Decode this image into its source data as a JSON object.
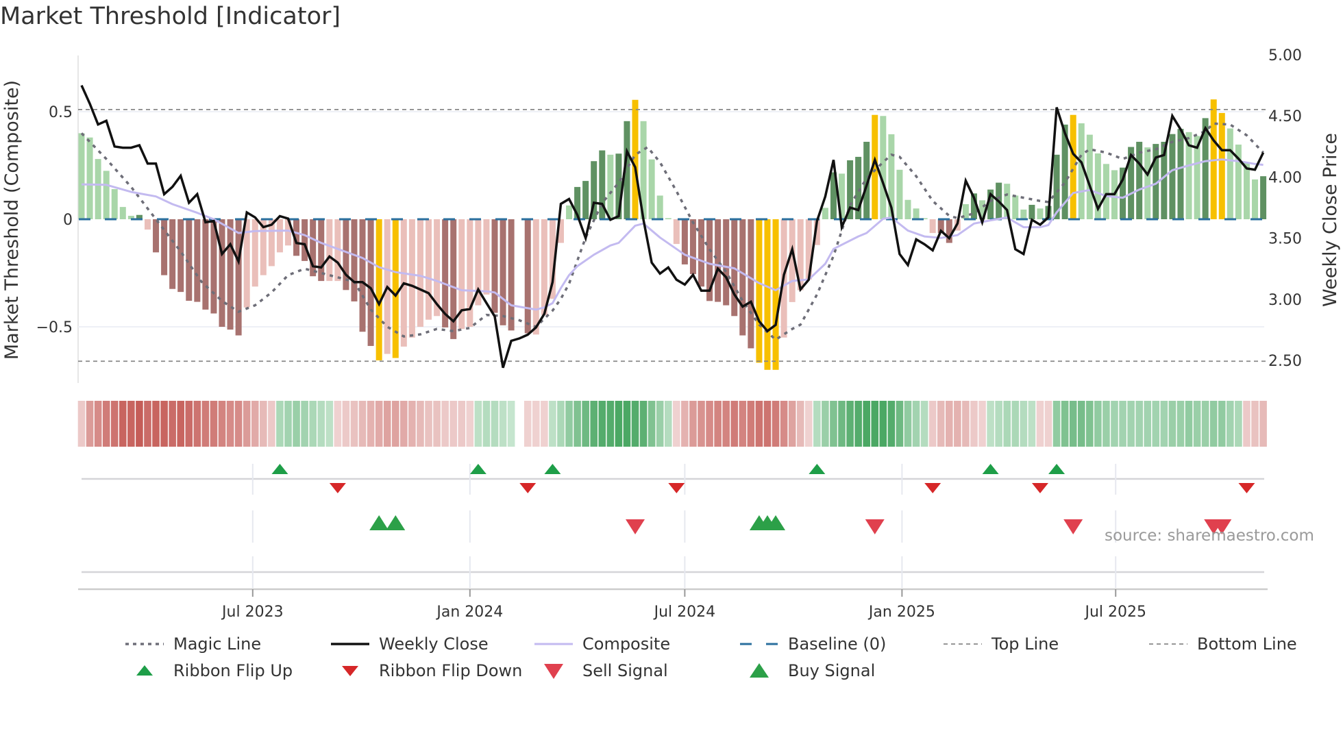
{
  "title": "Market Threshold [Indicator]",
  "source": "source: sharemaestro.com",
  "colors": {
    "light_green": "#a9d6a9",
    "dark_green": "#5f9162",
    "light_pink": "#eabfba",
    "dark_red": "#a8726f",
    "signal_yellow": "#f7c000",
    "close": "#111111",
    "magic": "#6e6e78",
    "composite": "#c3baf0",
    "baseline": "#2a6f9e",
    "threshold": "#888888",
    "flip_up": "#1e9e48",
    "flip_down": "#d62728",
    "buy": "#2ca048",
    "sell": "#e0404e",
    "ribbon_red": "#c25550",
    "ribbon_green": "#3a9f55"
  },
  "legend": [
    {
      "label": "Magic Line",
      "key": "magic"
    },
    {
      "label": "Weekly Close",
      "key": "close"
    },
    {
      "label": "Composite",
      "key": "composite"
    },
    {
      "label": "Baseline (0)",
      "key": "baseline"
    },
    {
      "label": "Top Line",
      "key": "top"
    },
    {
      "label": "Bottom Line",
      "key": "bottom"
    },
    {
      "label": "Ribbon Flip Up",
      "key": "flip_up"
    },
    {
      "label": "Ribbon Flip Down",
      "key": "flip_down"
    },
    {
      "label": "Sell Signal",
      "key": "sell"
    },
    {
      "label": "Buy Signal",
      "key": "buy"
    }
  ],
  "chart_data": {
    "type": "bar",
    "title": "Market Threshold [Indicator]",
    "ylabel": "Market Threshold (Composite)",
    "y2label": "Weekly Close Price",
    "x_start": "2023-02-06",
    "x_step_days": 7,
    "x_ticks": [
      {
        "label": "Jul 2023",
        "date": "2023-07-01"
      },
      {
        "label": "Jan 2024",
        "date": "2024-01-01"
      },
      {
        "label": "Jul 2024",
        "date": "2024-07-01"
      },
      {
        "label": "Jan 2025",
        "date": "2025-01-01"
      },
      {
        "label": "Jul 2025",
        "date": "2025-07-01"
      }
    ],
    "y_ticks": [
      {
        "label": "0.5",
        "value": 0.5
      },
      {
        "label": "0",
        "value": 0
      },
      {
        "label": "−0.5",
        "value": -0.5
      }
    ],
    "y2_ticks": [
      {
        "label": "5.00",
        "value": 5.0
      },
      {
        "label": "4.50",
        "value": 4.5
      },
      {
        "label": "4.00",
        "value": 4.0
      },
      {
        "label": "3.50",
        "value": 3.5
      },
      {
        "label": "3.00",
        "value": 3.0
      },
      {
        "label": "2.50",
        "value": 2.5
      }
    ],
    "ylim": [
      -0.66,
      0.75
    ],
    "y2lim": [
      2.5,
      5.0
    ],
    "baseline": 0,
    "top_line": 0.51,
    "bottom_line": -0.66,
    "bar_values": [
      0.4,
      0.38,
      0.28,
      0.225,
      0.14,
      0.057,
      0.016,
      0.02,
      -0.048,
      -0.154,
      -0.26,
      -0.324,
      -0.338,
      -0.379,
      -0.384,
      -0.42,
      -0.438,
      -0.5,
      -0.513,
      -0.54,
      -0.41,
      -0.313,
      -0.26,
      -0.218,
      -0.154,
      -0.122,
      -0.17,
      -0.194,
      -0.265,
      -0.287,
      -0.287,
      -0.287,
      -0.329,
      -0.382,
      -0.523,
      -0.589,
      -0.656,
      -0.626,
      -0.645,
      -0.592,
      -0.55,
      -0.5,
      -0.467,
      -0.45,
      -0.503,
      -0.557,
      -0.51,
      -0.5,
      -0.4,
      -0.35,
      -0.435,
      -0.493,
      -0.517,
      null,
      -0.53,
      -0.536,
      -0.445,
      -0.37,
      -0.11,
      0.064,
      0.15,
      0.178,
      0.27,
      0.32,
      0.3,
      0.305,
      0.456,
      0.555,
      0.456,
      0.278,
      0.11,
      0.005,
      -0.115,
      -0.21,
      -0.255,
      -0.313,
      -0.38,
      -0.384,
      -0.4,
      -0.45,
      -0.54,
      -0.6,
      -0.667,
      -0.7,
      -0.7,
      -0.55,
      -0.385,
      -0.33,
      -0.28,
      -0.12,
      0.053,
      0.218,
      0.212,
      0.274,
      0.29,
      0.36,
      0.485,
      0.48,
      0.395,
      0.23,
      0.09,
      0.05,
      0.005,
      -0.064,
      -0.064,
      -0.11,
      -0.053,
      0.07,
      0.12,
      0.088,
      0.138,
      0.17,
      0.165,
      0.11,
      0.045,
      0.067,
      0.05,
      0.062,
      0.3,
      0.44,
      0.485,
      0.446,
      0.393,
      0.306,
      0.257,
      0.228,
      0.24,
      0.336,
      0.36,
      0.334,
      0.35,
      0.36,
      0.396,
      0.42,
      0.405,
      0.387,
      0.47,
      0.557,
      0.494,
      0.422,
      0.347,
      0.265,
      0.185,
      0.2
    ],
    "bar_kinds": [
      "lg",
      "lg",
      "lg",
      "lg",
      "lg",
      "lg",
      "lg",
      "dg",
      "lp",
      "dr",
      "dr",
      "dr",
      "dr",
      "dr",
      "dr",
      "dr",
      "dr",
      "dr",
      "dr",
      "dr",
      "lp",
      "lp",
      "lp",
      "lp",
      "lp",
      "lp",
      "dr",
      "dr",
      "dr",
      "dr",
      "lp",
      "lp",
      "dr",
      "dr",
      "dr",
      "dr",
      "y",
      "lp",
      "y",
      "lp",
      "lp",
      "lp",
      "lp",
      "lp",
      "dr",
      "dr",
      "lp",
      "lp",
      "lp",
      "lp",
      "dr",
      "dr",
      "dr",
      null,
      "dr",
      "lp",
      "lp",
      "lp",
      "lp",
      "lg",
      "dg",
      "dg",
      "dg",
      "dg",
      "lg",
      "dg",
      "dg",
      "y",
      "lg",
      "lg",
      "lg",
      "lg",
      "lp",
      "dr",
      "dr",
      "dr",
      "dr",
      "dr",
      "dr",
      "dr",
      "dr",
      "dr",
      "y",
      "y",
      "y",
      "lp",
      "lp",
      "lp",
      "lp",
      "lp",
      "lg",
      "dg",
      "lg",
      "dg",
      "dg",
      "dg",
      "y",
      "lg",
      "lg",
      "lg",
      "lg",
      "lg",
      "lg",
      "lp",
      "dr",
      "dr",
      "lp",
      "lg",
      "dg",
      "lg",
      "dg",
      "dg",
      "lg",
      "lg",
      "lg",
      "dg",
      "lg",
      "dg",
      "dg",
      "dg",
      "y",
      "lg",
      "lg",
      "lg",
      "lg",
      "lg",
      "dg",
      "dg",
      "dg",
      "lg",
      "dg",
      "dg",
      "dg",
      "dg",
      "lg",
      "lg",
      "dg",
      "y",
      "y",
      "lg",
      "lg",
      "lg",
      "lg",
      "dg"
    ],
    "weekly_close": [
      4.75,
      4.6,
      4.43,
      4.46,
      4.25,
      4.24,
      4.24,
      4.26,
      4.11,
      4.11,
      3.86,
      3.92,
      4.01,
      3.79,
      3.86,
      3.63,
      3.64,
      3.37,
      3.45,
      3.31,
      3.71,
      3.67,
      3.59,
      3.61,
      3.68,
      3.66,
      3.46,
      3.45,
      3.27,
      3.26,
      3.35,
      3.3,
      3.2,
      3.14,
      3.14,
      3.09,
      2.96,
      3.1,
      3.03,
      3.13,
      3.11,
      3.08,
      3.05,
      2.96,
      2.88,
      2.82,
      2.91,
      2.92,
      3.08,
      2.97,
      2.86,
      2.44,
      2.66,
      2.68,
      2.71,
      2.77,
      2.88,
      3.14,
      3.78,
      3.82,
      3.69,
      3.5,
      3.79,
      3.78,
      3.65,
      3.68,
      4.21,
      4.08,
      3.65,
      3.3,
      3.21,
      3.26,
      3.16,
      3.12,
      3.2,
      3.07,
      3.07,
      3.25,
      3.18,
      3.04,
      2.94,
      2.98,
      2.82,
      2.74,
      2.79,
      3.2,
      3.41,
      3.08,
      3.16,
      3.64,
      3.84,
      4.14,
      3.59,
      3.75,
      3.73,
      3.93,
      4.14,
      3.95,
      3.75,
      3.37,
      3.28,
      3.49,
      3.45,
      3.4,
      3.56,
      3.5,
      3.62,
      3.97,
      3.83,
      3.63,
      3.86,
      3.8,
      3.73,
      3.41,
      3.37,
      3.65,
      3.61,
      3.67,
      4.57,
      4.36,
      4.19,
      4.12,
      3.93,
      3.74,
      3.86,
      3.86,
      3.98,
      4.18,
      4.11,
      4.02,
      4.16,
      4.18,
      4.5,
      4.39,
      4.26,
      4.24,
      4.4,
      4.3,
      4.22,
      4.22,
      4.15,
      4.07,
      4.06,
      4.2
    ],
    "magic_line": [
      [
        1,
        0.4
      ],
      [
        4,
        0.28
      ],
      [
        7,
        0.15
      ],
      [
        10,
        0
      ],
      [
        13,
        -0.15
      ],
      [
        15.5,
        -0.29
      ],
      [
        18,
        -0.38
      ],
      [
        20,
        -0.43
      ],
      [
        22,
        -0.4
      ],
      [
        24,
        -0.34
      ],
      [
        26,
        -0.26
      ],
      [
        28,
        -0.23
      ],
      [
        30,
        -0.25
      ],
      [
        32,
        -0.27
      ],
      [
        34,
        -0.29
      ],
      [
        36,
        -0.42
      ],
      [
        38,
        -0.5
      ],
      [
        40,
        -0.545
      ],
      [
        42,
        -0.535
      ],
      [
        44,
        -0.51
      ],
      [
        46,
        -0.52
      ],
      [
        48,
        -0.505
      ],
      [
        50,
        -0.445
      ],
      [
        52,
        -0.45
      ],
      [
        54,
        -0.47
      ],
      [
        56,
        -0.5
      ],
      [
        58,
        -0.425
      ],
      [
        59,
        -0.37
      ],
      [
        60,
        -0.3
      ],
      [
        62,
        -0.085
      ],
      [
        64,
        0.075
      ],
      [
        66,
        0.17
      ],
      [
        68,
        0.3
      ],
      [
        69.5,
        0.335
      ],
      [
        71,
        0.265
      ],
      [
        73,
        0.13
      ],
      [
        75,
        -0.015
      ],
      [
        77,
        -0.14
      ],
      [
        79,
        -0.245
      ],
      [
        81,
        -0.38
      ],
      [
        83,
        -0.49
      ],
      [
        85,
        -0.56
      ],
      [
        87,
        -0.51
      ],
      [
        88,
        -0.49
      ],
      [
        90,
        -0.35
      ],
      [
        92,
        -0.17
      ],
      [
        94,
        0.065
      ],
      [
        96,
        0.19
      ],
      [
        98,
        0.265
      ],
      [
        99,
        0.3
      ],
      [
        100,
        0.29
      ],
      [
        102,
        0.2
      ],
      [
        104,
        0.085
      ],
      [
        106,
        0.016
      ],
      [
        107,
        0.005
      ],
      [
        109,
        0.027
      ],
      [
        111,
        0.085
      ],
      [
        113,
        0.115
      ],
      [
        115,
        0.1
      ],
      [
        117,
        0.085
      ],
      [
        118,
        0.08
      ],
      [
        120,
        0.17
      ],
      [
        122,
        0.3
      ],
      [
        123,
        0.325
      ],
      [
        125,
        0.31
      ],
      [
        127,
        0.28
      ],
      [
        129,
        0.31
      ],
      [
        131,
        0.325
      ],
      [
        133,
        0.36
      ],
      [
        135,
        0.377
      ],
      [
        137,
        0.41
      ],
      [
        138,
        0.445
      ],
      [
        140,
        0.44
      ],
      [
        142,
        0.39
      ],
      [
        144,
        0.31
      ]
    ],
    "composite": [
      [
        1,
        0.162
      ],
      [
        4,
        0.16
      ],
      [
        7,
        0.127
      ],
      [
        10,
        0.106
      ],
      [
        12,
        0.07
      ],
      [
        15,
        0.03
      ],
      [
        17,
        0
      ],
      [
        20,
        -0.064
      ],
      [
        22,
        -0.055
      ],
      [
        26,
        -0.053
      ],
      [
        28,
        -0.074
      ],
      [
        30,
        -0.11
      ],
      [
        32,
        -0.138
      ],
      [
        35,
        -0.18
      ],
      [
        37,
        -0.223
      ],
      [
        39,
        -0.246
      ],
      [
        42,
        -0.263
      ],
      [
        44,
        -0.287
      ],
      [
        47,
        -0.33
      ],
      [
        50,
        -0.335
      ],
      [
        51,
        -0.34
      ],
      [
        53,
        -0.4
      ],
      [
        56,
        -0.42
      ],
      [
        57,
        -0.41
      ],
      [
        58,
        -0.39
      ],
      [
        59,
        -0.32
      ],
      [
        60,
        -0.26
      ],
      [
        61,
        -0.218
      ],
      [
        63,
        -0.165
      ],
      [
        65,
        -0.122
      ],
      [
        66,
        -0.11
      ],
      [
        68,
        -0.03
      ],
      [
        69,
        -0.02
      ],
      [
        71,
        -0.085
      ],
      [
        74,
        -0.165
      ],
      [
        77,
        -0.207
      ],
      [
        80,
        -0.228
      ],
      [
        83,
        -0.297
      ],
      [
        85,
        -0.33
      ],
      [
        87,
        -0.287
      ],
      [
        89,
        -0.28
      ],
      [
        91,
        -0.207
      ],
      [
        92,
        -0.138
      ],
      [
        95,
        -0.08
      ],
      [
        96,
        -0.064
      ],
      [
        98,
        0.002
      ],
      [
        99,
        0.008
      ],
      [
        101,
        -0.053
      ],
      [
        103,
        -0.08
      ],
      [
        105,
        -0.087
      ],
      [
        107,
        -0.074
      ],
      [
        109,
        -0.02
      ],
      [
        111,
        -0.005
      ],
      [
        113,
        0.008
      ],
      [
        115,
        -0.037
      ],
      [
        117,
        -0.037
      ],
      [
        118,
        -0.027
      ],
      [
        119,
        0.032
      ],
      [
        121,
        0.122
      ],
      [
        123,
        0.136
      ],
      [
        125,
        0.108
      ],
      [
        127,
        0.1
      ],
      [
        129,
        0.138
      ],
      [
        131,
        0.165
      ],
      [
        133,
        0.228
      ],
      [
        135,
        0.25
      ],
      [
        137,
        0.27
      ],
      [
        139,
        0.278
      ],
      [
        141,
        0.27
      ],
      [
        143,
        0.257
      ],
      [
        144,
        0.253
      ]
    ],
    "ribbon": [
      -0.2,
      -0.5,
      -0.6,
      -0.7,
      -0.75,
      -0.85,
      -0.85,
      -0.9,
      -0.8,
      -0.85,
      -0.85,
      -0.8,
      -0.85,
      -0.8,
      -0.75,
      -0.7,
      -0.7,
      -0.65,
      -0.6,
      -0.6,
      -0.5,
      -0.4,
      -0.3,
      -0.2,
      0.3,
      0.35,
      0.4,
      0.35,
      0.3,
      0.25,
      0.2,
      -0.15,
      -0.2,
      -0.25,
      -0.3,
      -0.35,
      -0.4,
      -0.45,
      -0.45,
      -0.4,
      -0.35,
      -0.3,
      -0.25,
      -0.25,
      -0.2,
      -0.2,
      -0.2,
      -0.15,
      0.2,
      0.25,
      0.25,
      0.2,
      0.15,
      null,
      -0.15,
      -0.15,
      -0.15,
      0.2,
      0.3,
      0.45,
      0.55,
      0.65,
      0.75,
      0.8,
      0.8,
      0.85,
      0.85,
      0.8,
      0.75,
      0.55,
      0.4,
      0.25,
      -0.15,
      -0.35,
      -0.5,
      -0.55,
      -0.6,
      -0.65,
      -0.65,
      -0.7,
      -0.65,
      -0.7,
      -0.75,
      -0.75,
      -0.7,
      -0.6,
      -0.45,
      -0.3,
      -0.15,
      0.25,
      0.4,
      0.55,
      0.65,
      0.75,
      0.8,
      0.85,
      0.85,
      0.85,
      0.8,
      0.65,
      0.45,
      0.35,
      0.25,
      -0.2,
      -0.3,
      -0.35,
      -0.35,
      -0.3,
      -0.2,
      -0.15,
      0.2,
      0.25,
      0.3,
      0.3,
      0.25,
      0.2,
      -0.15,
      -0.15,
      0.45,
      0.55,
      0.6,
      0.6,
      0.55,
      0.45,
      0.4,
      0.35,
      0.35,
      0.35,
      0.35,
      0.35,
      0.35,
      0.35,
      0.4,
      0.4,
      0.45,
      0.4,
      0.4,
      0.45,
      0.45,
      0.35,
      0.3,
      -0.2,
      -0.25,
      -0.3
    ],
    "signals": {
      "ribbon_flip_up": [
        25,
        49,
        58,
        90,
        111,
        119
      ],
      "ribbon_flip_down": [
        32,
        55,
        73,
        104,
        117,
        142
      ],
      "buy": [
        37,
        39,
        83,
        84,
        85
      ],
      "sell": [
        68,
        97,
        121,
        138,
        139
      ]
    }
  }
}
